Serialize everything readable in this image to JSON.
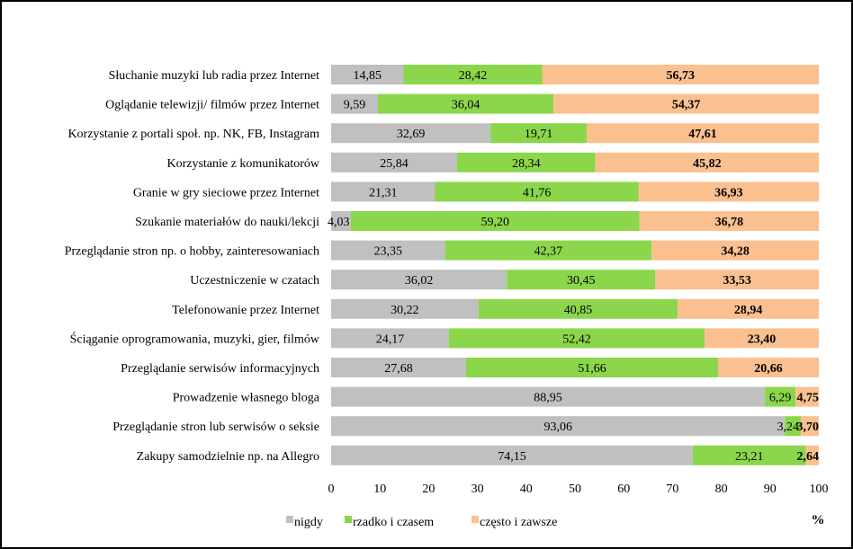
{
  "chart_data": {
    "type": "bar",
    "orientation": "horizontal",
    "stacked": true,
    "title": "",
    "xlabel": "%",
    "ylabel": "",
    "xlim": [
      0,
      100
    ],
    "xticks": [
      0,
      10,
      20,
      30,
      40,
      50,
      60,
      70,
      80,
      90,
      100
    ],
    "grid": false,
    "legend_position": "bottom",
    "categories": [
      "Słuchanie muzyki lub radia przez Internet",
      "Oglądanie telewizji/ filmów przez Internet",
      "Korzystanie z portali społ. np. NK, FB, Instagram",
      "Korzystanie z komunikatorów",
      "Granie w gry sieciowe przez Internet",
      "Szukanie materiałów do nauki/lekcji",
      "Przeglądanie stron np. o hobby, zainteresowaniach",
      "Uczestniczenie w  czatach",
      "Telefonowanie przez Internet",
      "Ściąganie oprogramowania, muzyki, gier, filmów",
      "Przeglądanie serwisów informacyjnych",
      "Prowadzenie własnego bloga",
      "Przeglądanie stron lub serwisów  o seksie",
      "Zakupy samodzielnie np. na Allegro"
    ],
    "series": [
      {
        "name": "nigdy",
        "color": "#C0C0C0",
        "values": [
          14.85,
          9.59,
          32.69,
          25.84,
          21.31,
          4.03,
          23.35,
          36.02,
          30.22,
          24.17,
          27.68,
          88.95,
          93.06,
          74.15
        ],
        "labels": [
          "14,85",
          "9,59",
          "32,69",
          "25,84",
          "21,31",
          "4,03",
          "23,35",
          "36,02",
          "30,22",
          "24,17",
          "27,68",
          "88,95",
          "93,06",
          "74,15"
        ],
        "bold": false
      },
      {
        "name": "rzadko i czasem",
        "color": "#8BD64A",
        "values": [
          28.42,
          36.04,
          19.71,
          28.34,
          41.76,
          59.2,
          42.37,
          30.45,
          40.85,
          52.42,
          51.66,
          6.29,
          3.24,
          23.21
        ],
        "labels": [
          "28,42",
          "36,04",
          "19,71",
          "28,34",
          "41,76",
          "59,20",
          "42,37",
          "30,45",
          "40,85",
          "52,42",
          "51,66",
          "6,29",
          "3,24",
          "23,21"
        ],
        "bold": false
      },
      {
        "name": "często i zawsze",
        "color": "#FAC090",
        "values": [
          56.73,
          54.37,
          47.61,
          45.82,
          36.93,
          36.78,
          34.28,
          33.53,
          28.94,
          23.4,
          20.66,
          4.75,
          3.7,
          2.64
        ],
        "labels": [
          "56,73",
          "54,37",
          "47,61",
          "45,82",
          "36,93",
          "36,78",
          "34,28",
          "33,53",
          "28,94",
          "23,40",
          "20,66",
          "4,75",
          "3,70",
          "2,64"
        ],
        "bold": true
      }
    ]
  }
}
